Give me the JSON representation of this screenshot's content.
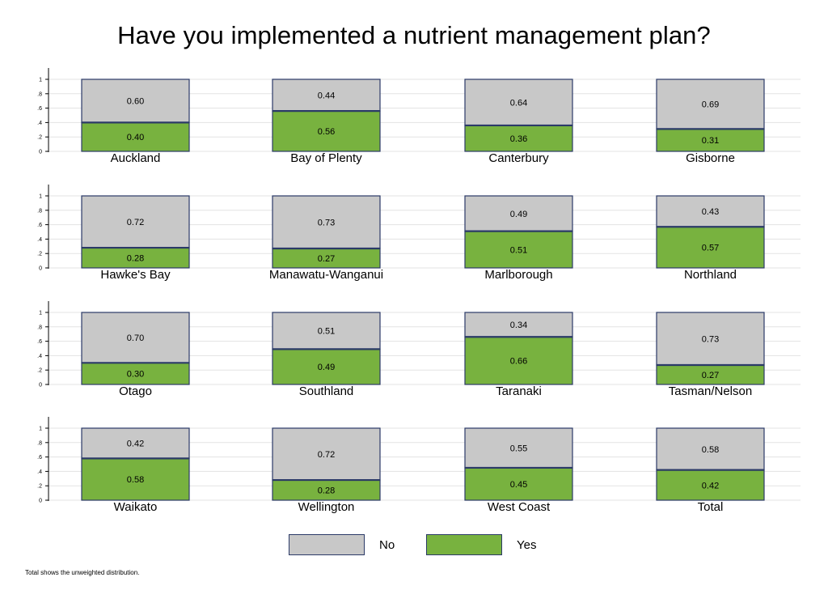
{
  "chart_data": {
    "type": "bar",
    "title": "Have you implemented a nutrient management plan?",
    "stacked": true,
    "y_range": [
      0,
      1
    ],
    "y_ticks": [
      "0",
      ".2",
      ".4",
      ".6",
      ".8",
      "1"
    ],
    "grid": true,
    "legend": {
      "placement": "bottom",
      "entries": [
        {
          "label": "No",
          "color": "#c8c8c8"
        },
        {
          "label": "Yes",
          "color": "#78b23f"
        }
      ]
    },
    "colors": {
      "no": "#c8c8c8",
      "yes": "#78b23f",
      "border": "#2b3a67"
    },
    "panels": [
      {
        "name": "Auckland",
        "yes": 0.4,
        "no": 0.6,
        "yes_label": "0.40",
        "no_label": "0.60"
      },
      {
        "name": "Bay of Plenty",
        "yes": 0.56,
        "no": 0.44,
        "yes_label": "0.56",
        "no_label": "0.44"
      },
      {
        "name": "Canterbury",
        "yes": 0.36,
        "no": 0.64,
        "yes_label": "0.36",
        "no_label": "0.64"
      },
      {
        "name": "Gisborne",
        "yes": 0.31,
        "no": 0.69,
        "yes_label": "0.31",
        "no_label": "0.69"
      },
      {
        "name": "Hawke's Bay",
        "yes": 0.28,
        "no": 0.72,
        "yes_label": "0.28",
        "no_label": "0.72"
      },
      {
        "name": "Manawatu-Wanganui",
        "yes": 0.27,
        "no": 0.73,
        "yes_label": "0.27",
        "no_label": "0.73"
      },
      {
        "name": "Marlborough",
        "yes": 0.51,
        "no": 0.49,
        "yes_label": "0.51",
        "no_label": "0.49"
      },
      {
        "name": "Northland",
        "yes": 0.57,
        "no": 0.43,
        "yes_label": "0.57",
        "no_label": "0.43"
      },
      {
        "name": "Otago",
        "yes": 0.3,
        "no": 0.7,
        "yes_label": "0.30",
        "no_label": "0.70"
      },
      {
        "name": "Southland",
        "yes": 0.49,
        "no": 0.51,
        "yes_label": "0.49",
        "no_label": "0.51"
      },
      {
        "name": "Taranaki",
        "yes": 0.66,
        "no": 0.34,
        "yes_label": "0.66",
        "no_label": "0.34"
      },
      {
        "name": "Tasman/Nelson",
        "yes": 0.27,
        "no": 0.73,
        "yes_label": "0.27",
        "no_label": "0.73"
      },
      {
        "name": "Waikato",
        "yes": 0.58,
        "no": 0.42,
        "yes_label": "0.58",
        "no_label": "0.42"
      },
      {
        "name": "Wellington",
        "yes": 0.28,
        "no": 0.72,
        "yes_label": "0.28",
        "no_label": "0.72"
      },
      {
        "name": "West Coast",
        "yes": 0.45,
        "no": 0.55,
        "yes_label": "0.45",
        "no_label": "0.55"
      },
      {
        "name": "Total",
        "yes": 0.42,
        "no": 0.58,
        "yes_label": "0.42",
        "no_label": "0.58"
      }
    ]
  },
  "footnote": "Total shows the unweighted distribution."
}
